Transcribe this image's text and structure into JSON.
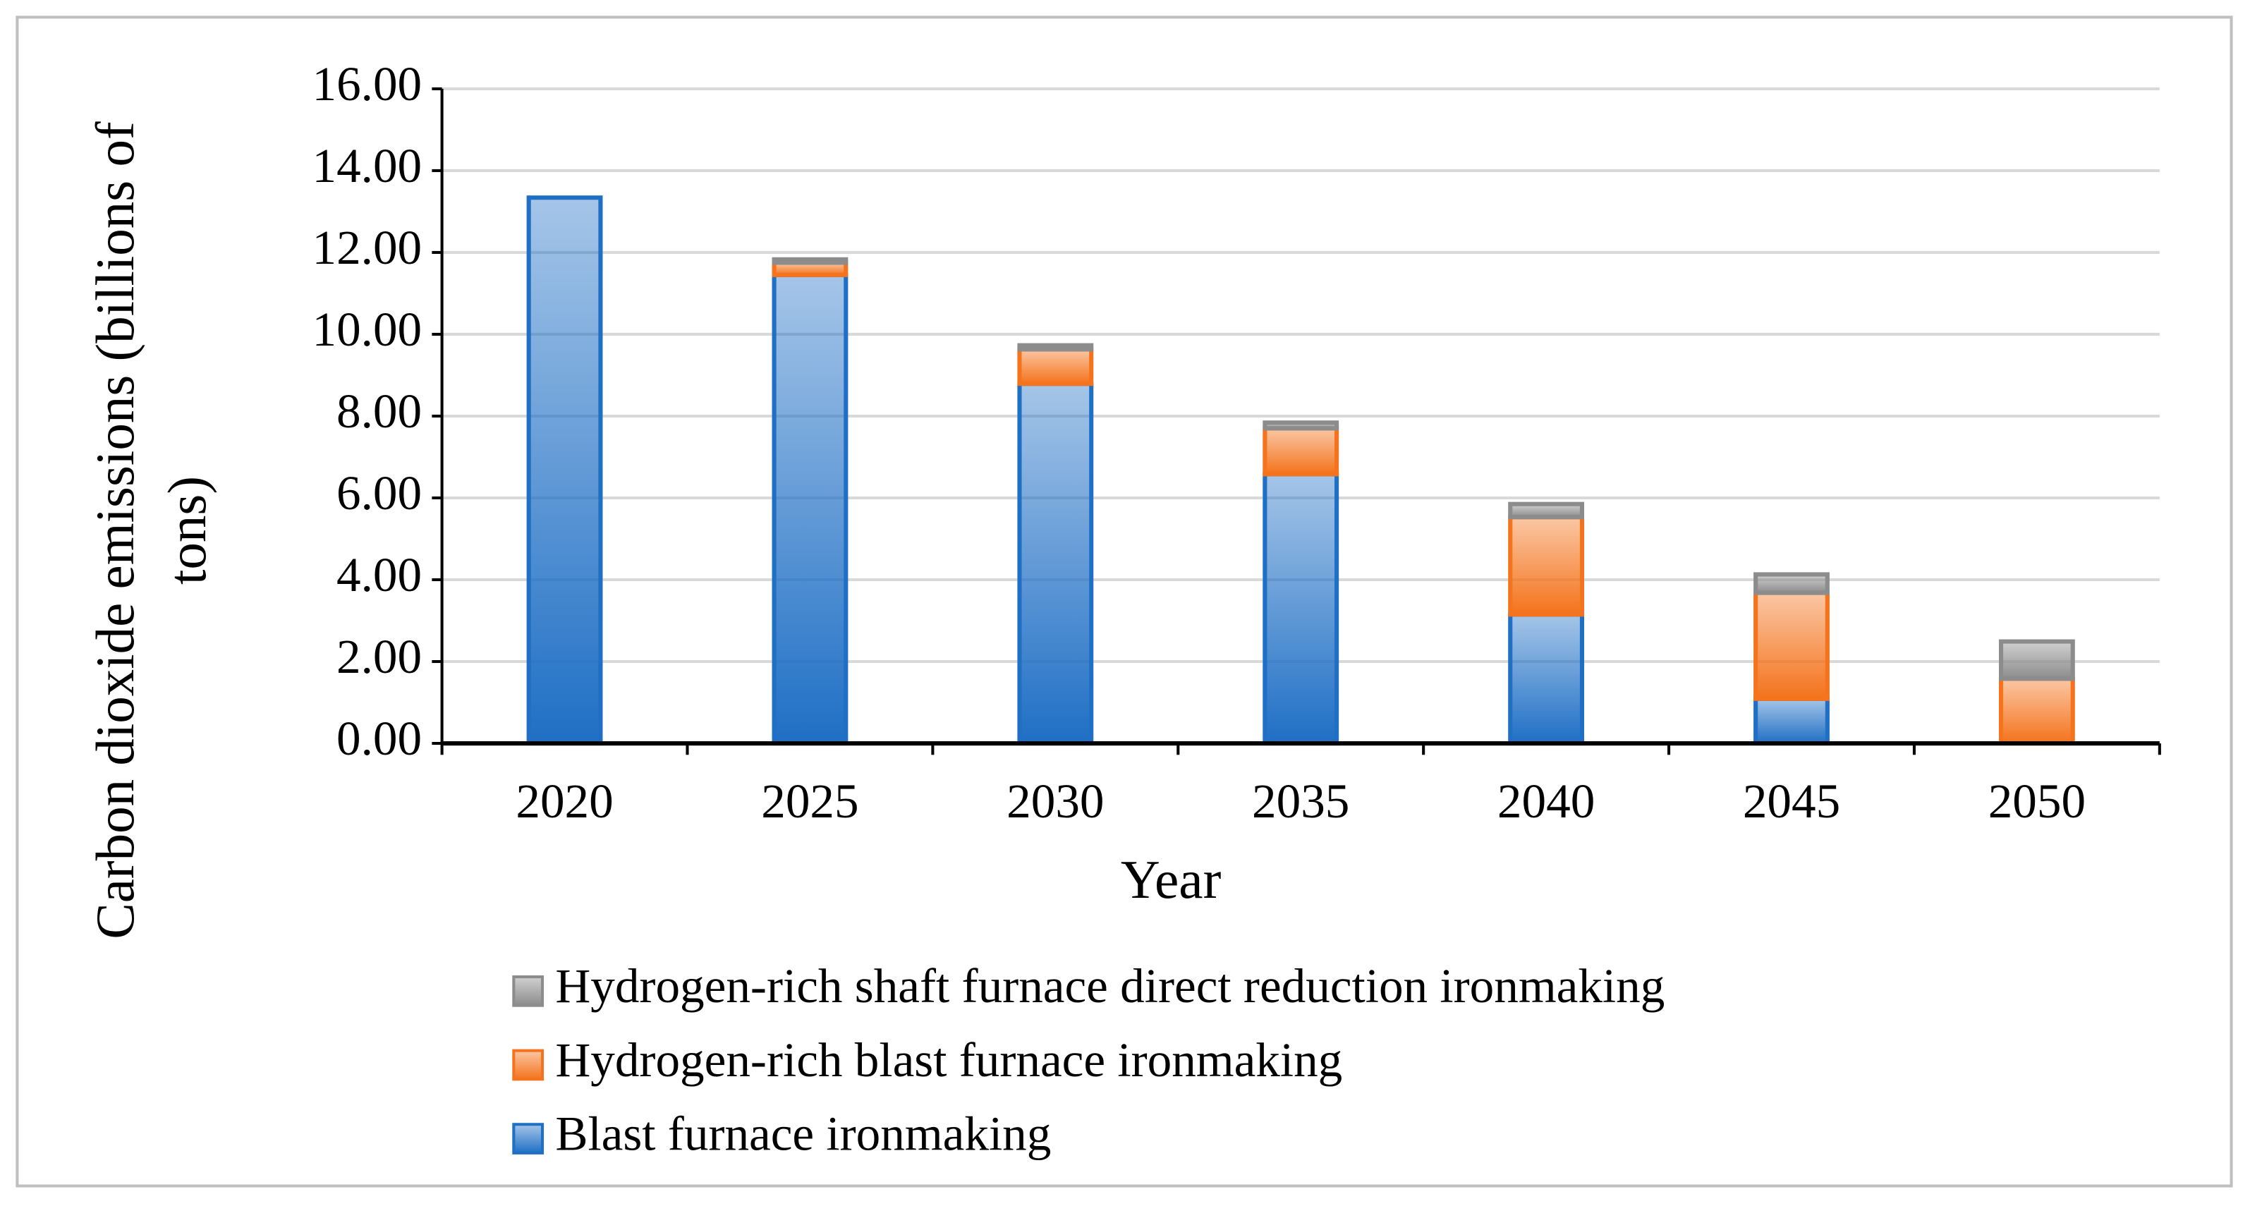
{
  "chart_data": {
    "type": "stacked_bar",
    "x_label": "Year",
    "y_label": "Carbon dioxide emissions (billions of tons)",
    "categories": [
      "2020",
      "2025",
      "2030",
      "2035",
      "2040",
      "2045",
      "2050"
    ],
    "series": [
      {
        "name": "Blast furnace ironmaking",
        "color": "#1f6fc5",
        "values": [
          13.34,
          11.45,
          8.79,
          6.58,
          3.15,
          1.09,
          0
        ]
      },
      {
        "name": "Hydrogen-rich blast furnace ironmaking",
        "color": "#f4731c",
        "values": [
          0,
          0.3,
          0.84,
          1.12,
          2.38,
          2.59,
          1.58
        ]
      },
      {
        "name": "Hydrogen-rich shaft furnace direct reduction ironmaking",
        "color": "#8c8c8c",
        "values": [
          0,
          0.08,
          0.1,
          0.14,
          0.32,
          0.45,
          0.91
        ]
      }
    ],
    "ylim": [
      0,
      16
    ],
    "yticks": [
      {
        "value": 0,
        "label": "0.00"
      },
      {
        "value": 2,
        "label": "2.00"
      },
      {
        "value": 4,
        "label": "4.00"
      },
      {
        "value": 6,
        "label": "6.00"
      },
      {
        "value": 8,
        "label": "8.00"
      },
      {
        "value": 10,
        "label": "10.00"
      },
      {
        "value": 12,
        "label": "12.00"
      },
      {
        "value": 14,
        "label": "14.00"
      },
      {
        "value": 16,
        "label": "16.00"
      }
    ],
    "grid": true,
    "legend": "bottom"
  }
}
